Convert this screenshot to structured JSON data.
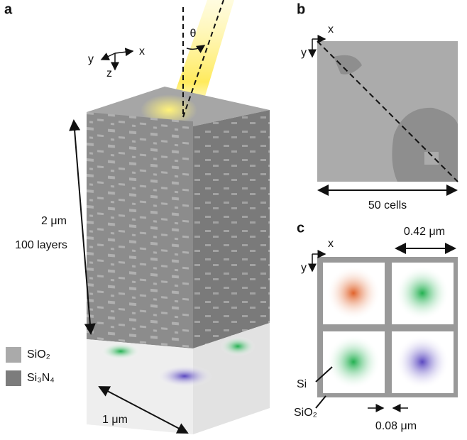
{
  "panel_a": {
    "label": "a",
    "angle": "θ",
    "axes": {
      "x": "x",
      "y": "y",
      "z": "z"
    },
    "height": "2 μm",
    "layers": "100 layers",
    "width": "1 μm",
    "legend": [
      "SiO₂",
      "Si₃N₄"
    ]
  },
  "panel_b": {
    "label": "b",
    "axes": {
      "x": "x",
      "y": "y"
    },
    "size": "50 cells"
  },
  "panel_c": {
    "label": "c",
    "axes": {
      "x": "x",
      "y": "y"
    },
    "period": "0.42 μm",
    "core": "Si",
    "cladding": "SiO₂",
    "gap": "0.08 μm"
  }
}
